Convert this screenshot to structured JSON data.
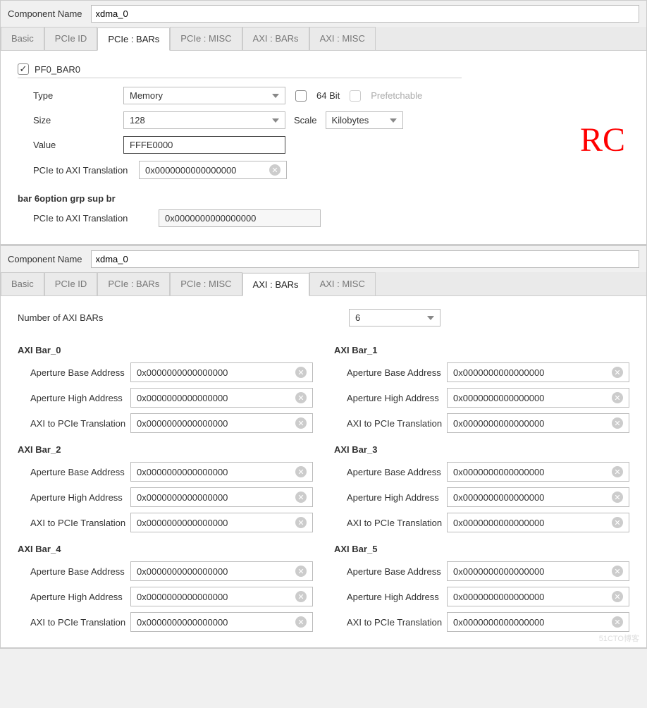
{
  "top": {
    "component_label": "Component Name",
    "component_value": "xdma_0",
    "tabs": [
      "Basic",
      "PCIe ID",
      "PCIe : BARs",
      "PCIe : MISC",
      "AXI : BARs",
      "AXI : MISC"
    ],
    "active_tab": 2,
    "badge": "RC",
    "pf0": {
      "title": "PF0_BAR0",
      "checked": true,
      "type_label": "Type",
      "type_value": "Memory",
      "bit64_label": "64 Bit",
      "bit64_checked": false,
      "prefetch_label": "Prefetchable",
      "prefetch_enabled": false,
      "size_label": "Size",
      "size_value": "128",
      "scale_label": "Scale",
      "scale_value": "Kilobytes",
      "value_label": "Value",
      "value_value": "FFFE0000",
      "trans_label": "PCIe to AXI Translation",
      "trans_value": "0x0000000000000000"
    },
    "bar6": {
      "title": "bar 6option grp sup br",
      "trans_label": "PCIe to AXI Translation",
      "trans_value": "0x0000000000000000"
    }
  },
  "bottom": {
    "component_label": "Component Name",
    "component_value": "xdma_0",
    "tabs": [
      "Basic",
      "PCIe ID",
      "PCIe : BARs",
      "PCIe : MISC",
      "AXI : BARs",
      "AXI : MISC"
    ],
    "active_tab": 4,
    "num_label": "Number of AXI BARs",
    "num_value": "6",
    "field_labels": {
      "base": "Aperture Base Address",
      "high": "Aperture High Address",
      "trans": "AXI to PCIe Translation"
    },
    "bars": [
      {
        "title": "AXI Bar_0",
        "base": "0x0000000000000000",
        "high": "0x0000000000000000",
        "trans": "0x0000000000000000"
      },
      {
        "title": "AXI Bar_1",
        "base": "0x0000000000000000",
        "high": "0x0000000000000000",
        "trans": "0x0000000000000000"
      },
      {
        "title": "AXI Bar_2",
        "base": "0x0000000000000000",
        "high": "0x0000000000000000",
        "trans": "0x0000000000000000"
      },
      {
        "title": "AXI Bar_3",
        "base": "0x0000000000000000",
        "high": "0x0000000000000000",
        "trans": "0x0000000000000000"
      },
      {
        "title": "AXI Bar_4",
        "base": "0x0000000000000000",
        "high": "0x0000000000000000",
        "trans": "0x0000000000000000"
      },
      {
        "title": "AXI Bar_5",
        "base": "0x0000000000000000",
        "high": "0x0000000000000000",
        "trans": "0x0000000000000000"
      }
    ],
    "watermark": "51CTO博客"
  },
  "colors": {
    "badge": "#ff0000",
    "border": "#cccccc",
    "bg": "#f0f0f0",
    "text_disabled": "#aaaaaa"
  }
}
